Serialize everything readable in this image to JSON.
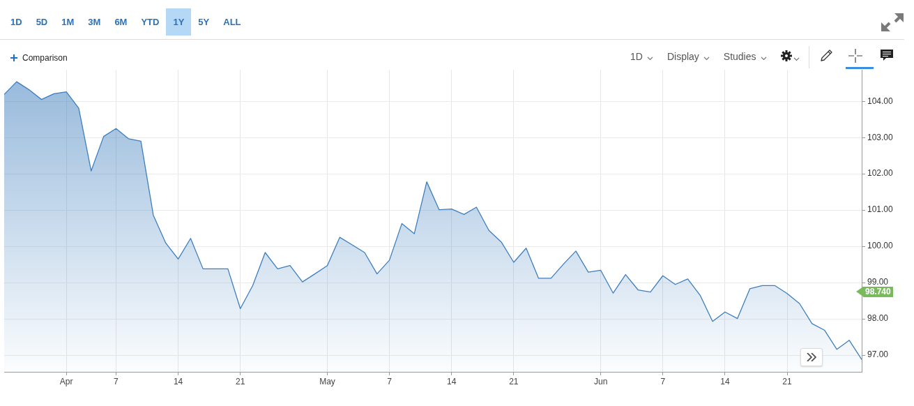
{
  "chart_data": {
    "type": "area",
    "categories": [
      null,
      null,
      null,
      null,
      null,
      "Apr",
      null,
      null,
      null,
      "7",
      null,
      null,
      null,
      null,
      "14",
      null,
      null,
      null,
      null,
      "21",
      null,
      null,
      null,
      null,
      null,
      null,
      "May",
      null,
      null,
      null,
      null,
      "7",
      null,
      null,
      null,
      null,
      "14",
      null,
      null,
      null,
      null,
      "21",
      null,
      null,
      null,
      null,
      null,
      null,
      "Jun",
      null,
      null,
      null,
      null,
      "7",
      null,
      null,
      null,
      null,
      "14",
      null,
      null,
      null,
      null,
      "21",
      null,
      null,
      null,
      null,
      null,
      null
    ],
    "series": [
      {
        "color": "#3d7ebd",
        "values": [
          104.19,
          104.54,
          104.32,
          104.05,
          104.21,
          104.26,
          103.81,
          102.08,
          103.03,
          103.25,
          102.97,
          102.9,
          100.86,
          100.09,
          99.65,
          100.22,
          99.38,
          99.38,
          99.38,
          98.28,
          98.92,
          99.83,
          99.38,
          99.47,
          99.02,
          99.24,
          99.47,
          100.25,
          100.04,
          99.83,
          99.24,
          99.62,
          100.63,
          100.35,
          101.78,
          101.01,
          101.03,
          100.88,
          101.08,
          100.44,
          100.12,
          99.56,
          99.95,
          99.12,
          99.12,
          99.51,
          99.87,
          99.29,
          99.34,
          98.71,
          99.22,
          98.8,
          98.74,
          99.19,
          98.95,
          99.1,
          98.65,
          97.93,
          98.19,
          98.01,
          98.83,
          98.92,
          98.92,
          98.7,
          98.42,
          97.87,
          97.69,
          97.16,
          97.41,
          96.88
        ]
      }
    ],
    "ylim": [
      96.54,
      104.87
    ],
    "yticks": [
      {
        "value": 97,
        "label": "97.00"
      },
      {
        "value": 98,
        "label": "98.00"
      },
      {
        "value": 99,
        "label": "99.00"
      },
      {
        "value": 100,
        "label": "100.00"
      },
      {
        "value": 101,
        "label": "101.00"
      },
      {
        "value": 102,
        "label": "102.00"
      },
      {
        "value": 103,
        "label": "103.00"
      },
      {
        "value": 104,
        "label": "104.00"
      }
    ],
    "grid": true,
    "annotations": [
      "1D",
      "5D",
      "1M",
      "3M",
      "6M",
      "YTD",
      "1Y",
      "5Y",
      "ALL",
      "Comparison",
      "1D",
      "Display",
      "Studies",
      "98.740"
    ]
  }
}
